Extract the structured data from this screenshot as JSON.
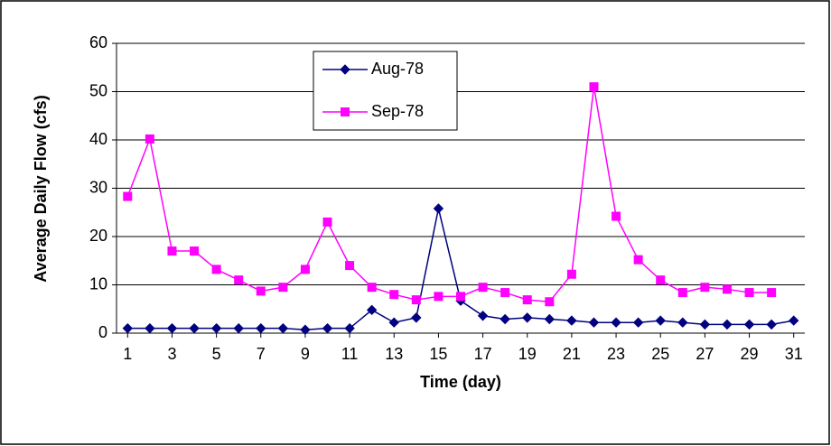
{
  "chart_data": {
    "type": "line",
    "x_label": "Time (day)",
    "y_label": "Average Daily Flow (cfs)",
    "x": [
      1,
      2,
      3,
      4,
      5,
      6,
      7,
      8,
      9,
      10,
      11,
      12,
      13,
      14,
      15,
      16,
      17,
      18,
      19,
      20,
      21,
      22,
      23,
      24,
      25,
      26,
      27,
      28,
      29,
      30,
      31
    ],
    "xlim": [
      0.5,
      31.5
    ],
    "xticks": [
      1,
      3,
      5,
      7,
      9,
      11,
      13,
      15,
      17,
      19,
      21,
      23,
      25,
      27,
      29,
      31
    ],
    "ylim": [
      0,
      60
    ],
    "yticks": [
      0,
      10,
      20,
      30,
      40,
      50,
      60
    ],
    "grid": true,
    "series": [
      {
        "name": "Aug-78",
        "color": "#000080",
        "marker": "diamond",
        "values": [
          1,
          1,
          1,
          1,
          1,
          1,
          1,
          1,
          0.7,
          1,
          1,
          4.8,
          2.2,
          3.2,
          25.8,
          6.7,
          3.6,
          2.9,
          3.2,
          2.9,
          2.6,
          2.2,
          2.2,
          2.2,
          2.6,
          2.2,
          1.8,
          1.8,
          1.8,
          1.8,
          2.6
        ]
      },
      {
        "name": "Sep-78",
        "color": "#ff00ff",
        "marker": "square",
        "values": [
          28.3,
          40.2,
          17,
          17,
          13.2,
          11,
          8.7,
          9.5,
          13.2,
          23,
          14,
          9.5,
          8,
          6.9,
          7.6,
          7.6,
          9.5,
          8.4,
          6.9,
          6.5,
          12.2,
          51,
          24.2,
          15.2,
          11,
          8.4,
          9.5,
          9.1,
          8.4,
          8.4,
          null
        ]
      }
    ]
  }
}
